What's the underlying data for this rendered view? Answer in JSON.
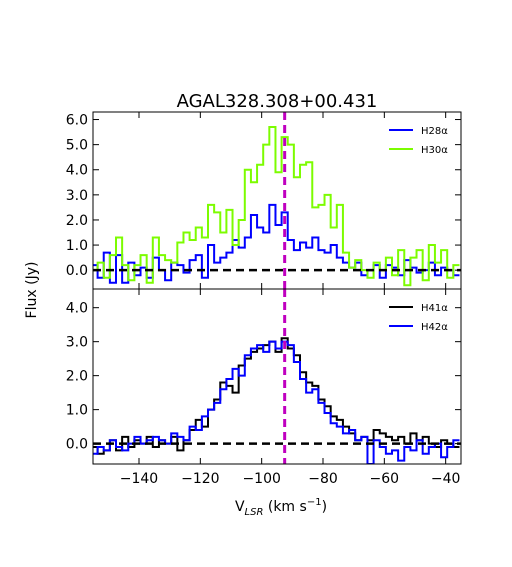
{
  "chart_data": {
    "title": "AGAL328.308+00.431",
    "xlabel": "V_LSR (km s^-1)",
    "xlabel_parts": {
      "base": "V",
      "sub": "LSR",
      "unit": " (km s",
      "sup": "−1",
      "close": ")"
    },
    "ylabel": "Flux (Jy)",
    "xlim": [
      -155,
      -35
    ],
    "x_ticks": [
      -140,
      -120,
      -100,
      -80,
      -60,
      -40
    ],
    "x_tick_labels": [
      "−140",
      "−120",
      "−100",
      "−80",
      "−60",
      "−40"
    ],
    "vline_x": -92.5,
    "vline_color": "#bf00bf",
    "baseline_y": 0,
    "panels": [
      {
        "type": "line",
        "step": true,
        "ylim": [
          -0.75,
          6.3
        ],
        "y_ticks": [
          0,
          1,
          2,
          3,
          4,
          5,
          6
        ],
        "y_tick_labels": [
          "0.0",
          "1.0",
          "2.0",
          "3.0",
          "4.0",
          "5.0",
          "6.0"
        ],
        "legend_position": "top-right",
        "series": [
          {
            "name": "H28α",
            "color": "#0000ff",
            "x": [
              -154.5,
              -152.5,
              -150.5,
              -148.5,
              -146.5,
              -144.5,
              -142.5,
              -140.5,
              -138.5,
              -136.5,
              -134.5,
              -132.5,
              -130.5,
              -128.5,
              -126.5,
              -124.5,
              -122.5,
              -120.5,
              -118.5,
              -116.5,
              -114.5,
              -112.5,
              -110.5,
              -108.5,
              -106.5,
              -104.5,
              -102.5,
              -100.5,
              -98.5,
              -96.5,
              -94.5,
              -92.5,
              -90.5,
              -88.5,
              -86.5,
              -84.5,
              -82.5,
              -80.5,
              -78.5,
              -76.5,
              -74.5,
              -72.5,
              -70.5,
              -68.5,
              -66.5,
              -64.5,
              -62.5,
              -60.5,
              -58.5,
              -56.5,
              -54.5,
              -52.5,
              -50.5,
              -48.5,
              -46.5,
              -44.5,
              -42.5,
              -40.5,
              -38.5,
              -36.5
            ],
            "y": [
              0.2,
              -0.3,
              0.7,
              -0.5,
              0.6,
              -0.5,
              0.3,
              -0.2,
              0.1,
              -0.3,
              0.5,
              0.0,
              -0.4,
              0.3,
              0.2,
              -0.1,
              0.4,
              0.6,
              -0.3,
              1.0,
              0.3,
              0.5,
              0.7,
              1.2,
              0.9,
              1.3,
              2.2,
              1.7,
              1.5,
              2.6,
              1.8,
              2.3,
              1.2,
              0.8,
              1.1,
              0.9,
              1.3,
              0.8,
              0.7,
              1.0,
              0.5,
              0.3,
              0.1,
              0.3,
              -0.2,
              0.0,
              0.2,
              -0.3,
              0.2,
              0.1,
              -0.2,
              0.4,
              0.1,
              -0.1,
              0.0,
              0.3,
              -0.2,
              0.1,
              0.0,
              -0.2
            ]
          },
          {
            "name": "H30α",
            "color": "#7cfc00",
            "x": [
              -154.5,
              -152.5,
              -150.5,
              -148.5,
              -146.5,
              -144.5,
              -142.5,
              -140.5,
              -138.5,
              -136.5,
              -134.5,
              -132.5,
              -130.5,
              -128.5,
              -126.5,
              -124.5,
              -122.5,
              -120.5,
              -118.5,
              -116.5,
              -114.5,
              -112.5,
              -110.5,
              -108.5,
              -106.5,
              -104.5,
              -102.5,
              -100.5,
              -98.5,
              -96.5,
              -94.5,
              -92.5,
              -90.5,
              -88.5,
              -86.5,
              -84.5,
              -82.5,
              -80.5,
              -78.5,
              -76.5,
              -74.5,
              -72.5,
              -70.5,
              -68.5,
              -66.5,
              -64.5,
              -62.5,
              -60.5,
              -58.5,
              -56.5,
              -54.5,
              -52.5,
              -50.5,
              -48.5,
              -46.5,
              -44.5,
              -42.5,
              -40.5,
              -38.5,
              -36.5
            ],
            "y": [
              0.0,
              0.3,
              -0.3,
              0.6,
              1.3,
              0.2,
              -0.4,
              0.2,
              0.6,
              -0.5,
              1.3,
              0.6,
              0.4,
              0.3,
              1.1,
              1.5,
              1.2,
              1.7,
              1.3,
              2.6,
              2.3,
              1.5,
              2.4,
              1.0,
              2.0,
              4.0,
              3.5,
              4.2,
              5.0,
              5.7,
              3.9,
              5.3,
              5.0,
              3.7,
              4.2,
              4.3,
              2.5,
              2.6,
              3.0,
              1.7,
              2.6,
              0.7,
              0.1,
              0.4,
              0.0,
              -0.3,
              0.3,
              0.0,
              0.5,
              -0.2,
              0.8,
              -0.6,
              0.5,
              0.8,
              -0.4,
              1.0,
              0.3,
              0.8,
              -0.3,
              0.2
            ]
          }
        ]
      },
      {
        "type": "line",
        "step": true,
        "ylim": [
          -0.6,
          4.55
        ],
        "y_ticks": [
          0,
          1,
          2,
          3,
          4
        ],
        "y_tick_labels": [
          "0.0",
          "1.0",
          "2.0",
          "3.0",
          "4.0"
        ],
        "legend_position": "top-right",
        "series": [
          {
            "name": "H41α",
            "color": "#000000",
            "x": [
              -154.5,
              -152.5,
              -150.5,
              -148.5,
              -146.5,
              -144.5,
              -142.5,
              -140.5,
              -138.5,
              -136.5,
              -134.5,
              -132.5,
              -130.5,
              -128.5,
              -126.5,
              -124.5,
              -122.5,
              -120.5,
              -118.5,
              -116.5,
              -114.5,
              -112.5,
              -110.5,
              -108.5,
              -106.5,
              -104.5,
              -102.5,
              -100.5,
              -98.5,
              -96.5,
              -94.5,
              -92.5,
              -90.5,
              -88.5,
              -86.5,
              -84.5,
              -82.5,
              -80.5,
              -78.5,
              -76.5,
              -74.5,
              -72.5,
              -70.5,
              -68.5,
              -66.5,
              -64.5,
              -62.5,
              -60.5,
              -58.5,
              -56.5,
              -54.5,
              -52.5,
              -50.5,
              -48.5,
              -46.5,
              -44.5,
              -42.5,
              -40.5,
              -38.5,
              -36.5
            ],
            "y": [
              -0.1,
              -0.3,
              -0.2,
              0.1,
              -0.2,
              0.2,
              -0.1,
              0.1,
              0.0,
              0.2,
              -0.1,
              0.1,
              0.0,
              0.2,
              -0.2,
              0.1,
              0.4,
              0.7,
              0.5,
              1.0,
              1.3,
              1.8,
              1.7,
              1.5,
              2.3,
              2.5,
              2.7,
              2.8,
              2.9,
              3.0,
              2.7,
              3.1,
              2.8,
              2.6,
              2.1,
              1.8,
              1.7,
              1.3,
              1.1,
              0.8,
              0.7,
              0.5,
              0.3,
              0.1,
              0.2,
              0.1,
              0.4,
              0.3,
              0.2,
              0.1,
              0.2,
              0.0,
              0.3,
              0.1,
              0.2,
              0.0,
              -0.1,
              0.1,
              0.0,
              -0.1
            ]
          },
          {
            "name": "H42α",
            "color": "#0000ff",
            "x": [
              -154.5,
              -152.5,
              -150.5,
              -148.5,
              -146.5,
              -144.5,
              -142.5,
              -140.5,
              -138.5,
              -136.5,
              -134.5,
              -132.5,
              -130.5,
              -128.5,
              -126.5,
              -124.5,
              -122.5,
              -120.5,
              -118.5,
              -116.5,
              -114.5,
              -112.5,
              -110.5,
              -108.5,
              -106.5,
              -104.5,
              -102.5,
              -100.5,
              -98.5,
              -96.5,
              -94.5,
              -92.5,
              -90.5,
              -88.5,
              -86.5,
              -84.5,
              -82.5,
              -80.5,
              -78.5,
              -76.5,
              -74.5,
              -72.5,
              -70.5,
              -68.5,
              -66.5,
              -64.5,
              -62.5,
              -60.5,
              -58.5,
              -56.5,
              -54.5,
              -52.5,
              -50.5,
              -48.5,
              -46.5,
              -44.5,
              -42.5,
              -40.5,
              -38.5,
              -36.5
            ],
            "y": [
              -0.3,
              -0.1,
              -0.2,
              0.1,
              -0.1,
              -0.2,
              0.0,
              0.2,
              0.0,
              0.1,
              0.2,
              0.1,
              0.0,
              0.3,
              0.2,
              0.1,
              0.5,
              0.4,
              0.8,
              1.0,
              1.2,
              1.6,
              1.9,
              2.2,
              2.0,
              2.6,
              2.8,
              2.9,
              2.7,
              3.0,
              2.8,
              3.0,
              2.9,
              2.4,
              1.9,
              1.5,
              1.6,
              1.2,
              0.9,
              0.6,
              0.5,
              0.3,
              0.4,
              0.1,
              0.2,
              -0.6,
              0.1,
              -0.1,
              -0.3,
              -0.2,
              -0.5,
              -0.1,
              -0.2,
              0.1,
              -0.3,
              -0.1,
              0.0,
              -0.4,
              -0.1,
              0.1
            ]
          }
        ]
      }
    ]
  }
}
